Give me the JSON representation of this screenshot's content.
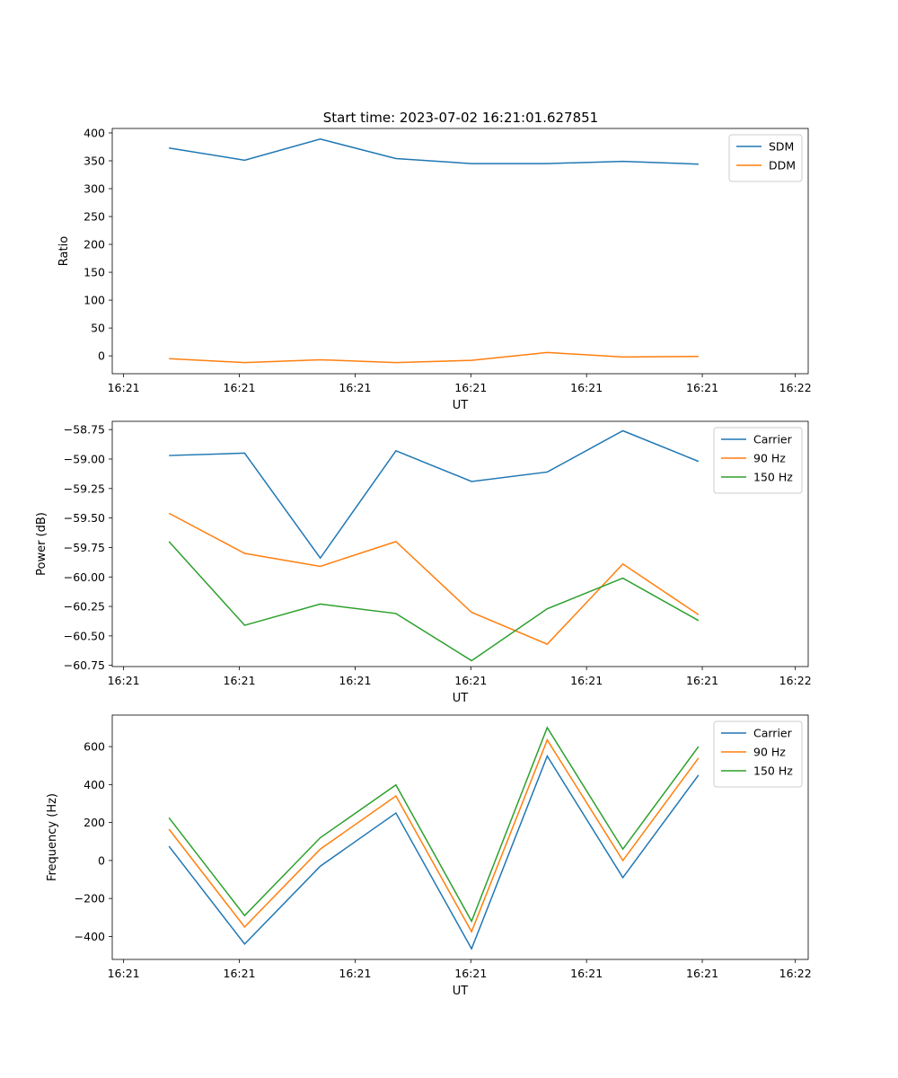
{
  "title": "Start time: 2023-07-02 16:21:01.627851",
  "chart_data": [
    {
      "type": "line",
      "xlabel": "UT",
      "ylabel": "Ratio",
      "xtick_labels": [
        "16:21",
        "16:21",
        "16:21",
        "16:21",
        "16:21",
        "16:21",
        "16:22"
      ],
      "xlim": [
        -0.75,
        8.45
      ],
      "ylim": [
        -32,
        408
      ],
      "yticks": [
        0,
        50,
        100,
        150,
        200,
        250,
        300,
        350,
        400
      ],
      "legend_position": "top-right",
      "series": [
        {
          "name": "SDM",
          "color": "#1f77b4",
          "values": [
            373,
            351,
            389,
            354,
            345,
            345,
            349,
            344
          ]
        },
        {
          "name": "DDM",
          "color": "#ff7f0e",
          "values": [
            -5,
            -12,
            -7,
            -12,
            -8,
            6,
            -2,
            -1
          ]
        }
      ]
    },
    {
      "type": "line",
      "xlabel": "UT",
      "ylabel": "Power (dB)",
      "xtick_labels": [
        "16:21",
        "16:21",
        "16:21",
        "16:21",
        "16:21",
        "16:21",
        "16:22"
      ],
      "xlim": [
        -0.75,
        8.45
      ],
      "ylim": [
        -60.76,
        -58.68
      ],
      "yticks": [
        -60.75,
        -60.5,
        -60.25,
        -60.0,
        -59.75,
        -59.5,
        -59.25,
        -59.0,
        -58.75
      ],
      "legend_position": "top-right",
      "series": [
        {
          "name": "Carrier",
          "color": "#1f77b4",
          "values": [
            -58.97,
            -58.95,
            -59.84,
            -58.93,
            -59.19,
            -59.11,
            -58.76,
            -59.02
          ]
        },
        {
          "name": "90 Hz",
          "color": "#ff7f0e",
          "values": [
            -59.46,
            -59.8,
            -59.91,
            -59.7,
            -60.3,
            -60.57,
            -59.89,
            -60.32
          ]
        },
        {
          "name": "150 Hz",
          "color": "#2ca02c",
          "values": [
            -59.7,
            -60.41,
            -60.23,
            -60.31,
            -60.71,
            -60.27,
            -60.01,
            -60.37
          ]
        }
      ]
    },
    {
      "type": "line",
      "xlabel": "UT",
      "ylabel": "Frequency (Hz)",
      "xtick_labels": [
        "16:21",
        "16:21",
        "16:21",
        "16:21",
        "16:21",
        "16:21",
        "16:22"
      ],
      "xlim": [
        -0.75,
        8.45
      ],
      "ylim": [
        -521,
        766
      ],
      "yticks": [
        -400,
        -200,
        0,
        200,
        400,
        600
      ],
      "legend_position": "top-right",
      "series": [
        {
          "name": "Carrier",
          "color": "#1f77b4",
          "values": [
            75,
            -440,
            -30,
            250,
            -465,
            550,
            -90,
            450
          ]
        },
        {
          "name": "90 Hz",
          "color": "#ff7f0e",
          "values": [
            165,
            -350,
            60,
            340,
            -375,
            635,
            0,
            540
          ]
        },
        {
          "name": "150 Hz",
          "color": "#2ca02c",
          "values": [
            225,
            -290,
            120,
            398,
            -320,
            700,
            60,
            600
          ]
        }
      ]
    }
  ]
}
